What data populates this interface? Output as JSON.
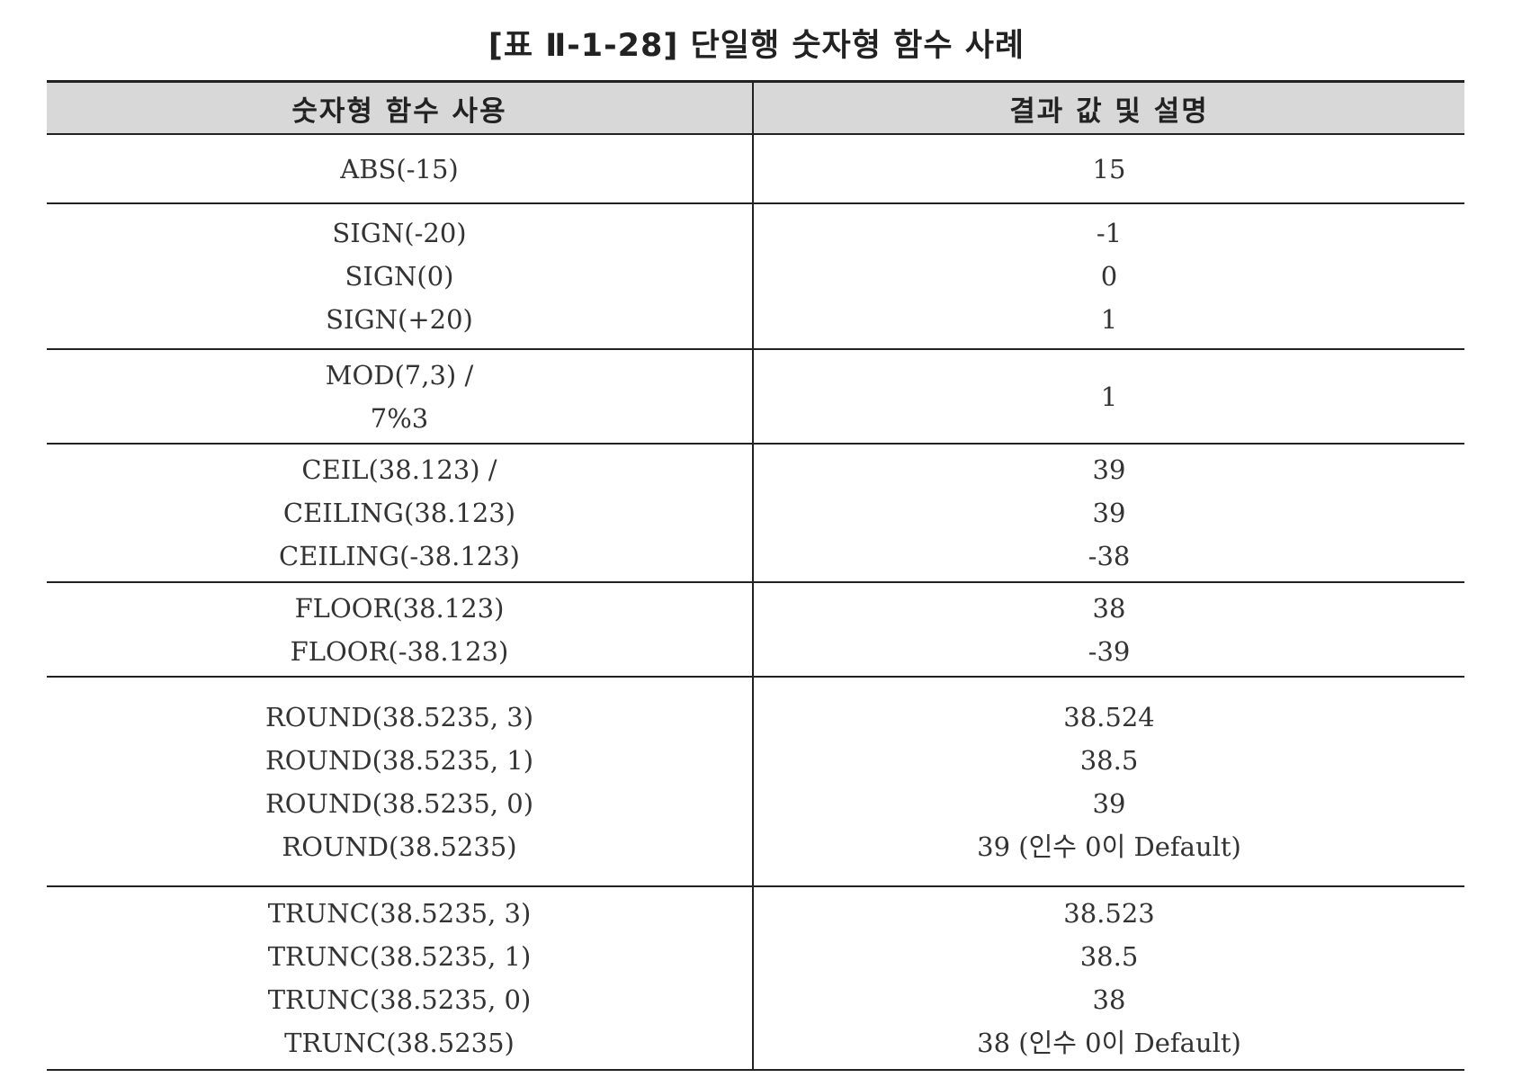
{
  "caption": "[표 Ⅱ-1-28] 단일행 숫자형 함수 사례",
  "table": {
    "headers": [
      "숫자형 함수 사용",
      "결과 값 및 설명"
    ],
    "rows": [
      {
        "usage": [
          "ABS(-15)"
        ],
        "result": [
          "15"
        ]
      },
      {
        "usage": [
          "SIGN(-20)",
          "SIGN(0)",
          "SIGN(+20)"
        ],
        "result": [
          "-1",
          "0",
          "1"
        ]
      },
      {
        "usage": [
          "MOD(7,3) /",
          "7%3"
        ],
        "result": [
          "1"
        ]
      },
      {
        "usage": [
          "CEIL(38.123) /",
          "CEILING(38.123)",
          "CEILING(-38.123)"
        ],
        "result": [
          "39",
          "39",
          "-38"
        ]
      },
      {
        "usage": [
          "FLOOR(38.123)",
          "FLOOR(-38.123)"
        ],
        "result": [
          "38",
          "-39"
        ]
      },
      {
        "usage": [
          "ROUND(38.5235, 3)",
          "ROUND(38.5235, 1)",
          "ROUND(38.5235, 0)",
          "ROUND(38.5235)"
        ],
        "result": [
          "38.524",
          "38.5",
          "39",
          "39 (인수 0이 Default)"
        ]
      },
      {
        "usage": [
          "TRUNC(38.5235, 3)",
          "TRUNC(38.5235, 1)",
          "TRUNC(38.5235, 0)",
          "TRUNC(38.5235)"
        ],
        "result": [
          "38.523",
          "38.5",
          "38",
          "38 (인수 0이 Default)"
        ]
      }
    ]
  }
}
